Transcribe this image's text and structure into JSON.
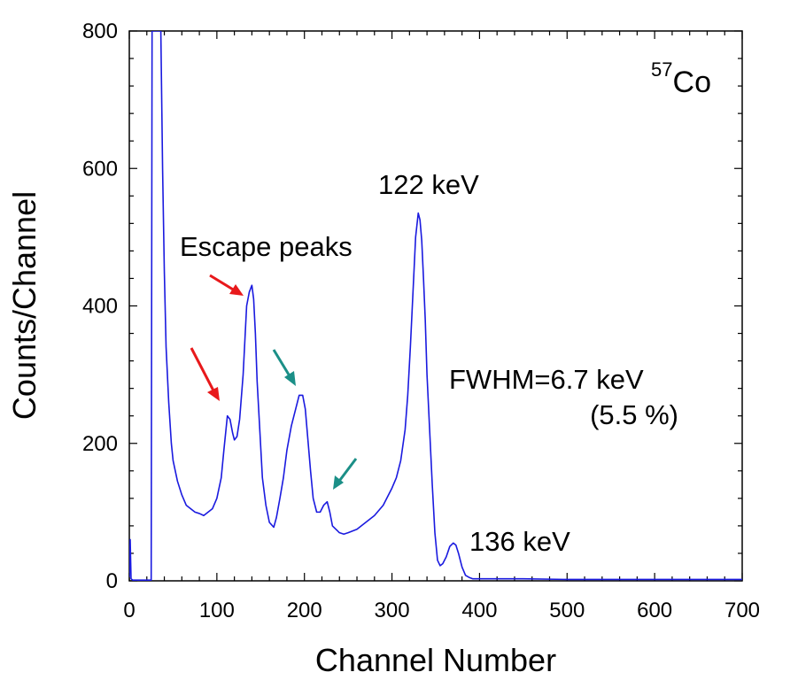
{
  "chart_data": {
    "type": "line",
    "xlabel": "Channel Number",
    "ylabel": "Counts/Channel",
    "xlim": [
      0,
      700
    ],
    "ylim": [
      0,
      800
    ],
    "x_ticks": [
      "0",
      "100",
      "200",
      "300",
      "400",
      "500",
      "600",
      "700"
    ],
    "y_ticks": [
      "0",
      "200",
      "400",
      "600",
      "800"
    ],
    "grid": false,
    "series": [
      {
        "color": "#1a1adf",
        "x": [
          0,
          1,
          2,
          3,
          4,
          5,
          6,
          25,
          26,
          27,
          28,
          30,
          32,
          34,
          36,
          38,
          40,
          42,
          45,
          48,
          50,
          55,
          60,
          65,
          70,
          75,
          80,
          85,
          90,
          95,
          100,
          105,
          108,
          112,
          115,
          118,
          120,
          123,
          126,
          130,
          134,
          137,
          140,
          142,
          144,
          146,
          149,
          152,
          156,
          160,
          165,
          168,
          172,
          176,
          180,
          185,
          190,
          194,
          198,
          201,
          204,
          207,
          210,
          214,
          218,
          222,
          226,
          229,
          232,
          236,
          240,
          245,
          250,
          260,
          270,
          280,
          290,
          300,
          305,
          310,
          315,
          318,
          321,
          324,
          327,
          330,
          332,
          334,
          336,
          338,
          340,
          343,
          346,
          349,
          352,
          355,
          358,
          362,
          366,
          370,
          373,
          376,
          380,
          384,
          388,
          392,
          400,
          420,
          450,
          500,
          550,
          600,
          650,
          700
        ],
        "y": [
          5,
          60,
          3,
          2,
          1,
          1,
          1,
          1,
          800,
          800,
          800,
          800,
          800,
          800,
          800,
          600,
          450,
          340,
          260,
          200,
          175,
          145,
          125,
          110,
          105,
          100,
          98,
          95,
          100,
          105,
          120,
          150,
          190,
          240,
          235,
          215,
          205,
          210,
          235,
          300,
          400,
          420,
          430,
          410,
          360,
          290,
          220,
          150,
          110,
          85,
          78,
          92,
          120,
          150,
          190,
          225,
          250,
          270,
          270,
          250,
          205,
          160,
          120,
          100,
          100,
          110,
          115,
          100,
          80,
          75,
          70,
          68,
          70,
          75,
          85,
          95,
          110,
          135,
          150,
          175,
          220,
          270,
          340,
          420,
          500,
          535,
          525,
          495,
          440,
          380,
          300,
          220,
          140,
          70,
          30,
          22,
          25,
          35,
          50,
          55,
          52,
          40,
          20,
          8,
          5,
          3,
          3,
          3,
          3,
          2,
          2,
          2,
          2,
          2
        ]
      }
    ],
    "annotations": {
      "isotope_mass": "57",
      "isotope_symbol": "Co",
      "peak_122": "122 keV",
      "peak_136": "136 keV",
      "escape_label": "Escape peaks",
      "fwhm": "FWHM=6.7 keV",
      "fwhm_pct": "(5.5 %)"
    },
    "arrow_colors": {
      "red": "#e8191b",
      "teal": "#1b8f87"
    }
  }
}
